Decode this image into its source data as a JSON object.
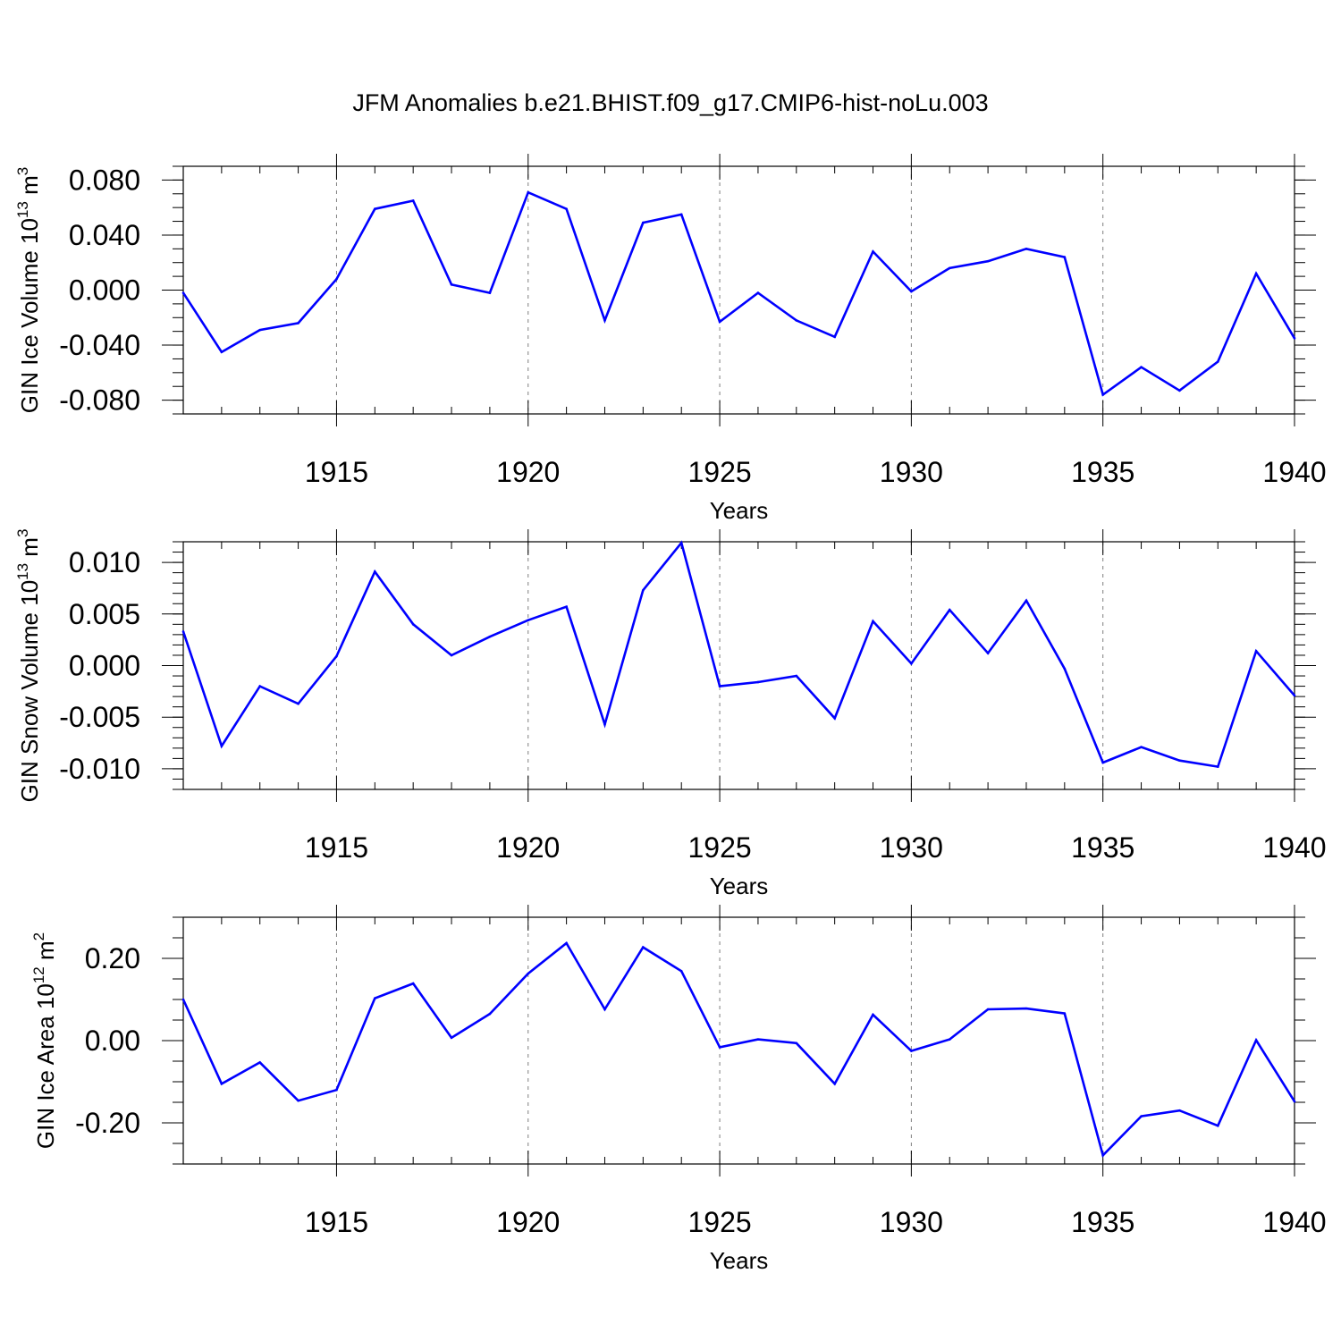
{
  "title": "JFM Anomalies b.e21.BHIST.f09_g17.CMIP6-hist-noLu.003",
  "colors": {
    "line": "#0000ff",
    "axis": "#000000",
    "grid": "#7f7f7f"
  },
  "chart_data": [
    {
      "type": "line",
      "name": "ice-volume",
      "ylabel_main": "GIN Ice Volume 10",
      "ylabel_exp1": "13",
      "ylabel_mid": " m",
      "ylabel_exp2": "3",
      "xlabel": "Years",
      "xlim": [
        1911,
        1940
      ],
      "ylim": [
        -0.09,
        0.09
      ],
      "xticks": [
        1915,
        1920,
        1925,
        1930,
        1935,
        1940
      ],
      "xtick_labels": [
        "1915",
        "1920",
        "1925",
        "1930",
        "1935",
        "1940"
      ],
      "yticks": [
        -0.08,
        -0.04,
        0.0,
        0.04,
        0.08
      ],
      "ytick_labels": [
        "-0.080",
        "-0.040",
        "0.000",
        "0.040",
        "0.080"
      ],
      "yminor_step": 0.01,
      "x": [
        1911,
        1912,
        1913,
        1914,
        1915,
        1916,
        1917,
        1918,
        1919,
        1920,
        1921,
        1922,
        1923,
        1924,
        1925,
        1926,
        1927,
        1928,
        1929,
        1930,
        1931,
        1932,
        1933,
        1934,
        1935,
        1936,
        1937,
        1938,
        1939,
        1940
      ],
      "values": [
        -0.002,
        -0.045,
        -0.029,
        -0.024,
        0.008,
        0.059,
        0.065,
        0.004,
        -0.002,
        0.071,
        0.059,
        -0.022,
        0.049,
        0.055,
        -0.023,
        -0.002,
        -0.022,
        -0.034,
        0.028,
        -0.001,
        0.016,
        0.021,
        0.03,
        0.024,
        -0.076,
        -0.056,
        -0.073,
        -0.052,
        0.012,
        -0.035
      ]
    },
    {
      "type": "line",
      "name": "snow-volume",
      "ylabel_main": "GIN Snow Volume 10",
      "ylabel_exp1": "13",
      "ylabel_mid": " m",
      "ylabel_exp2": "3",
      "xlabel": "Years",
      "xlim": [
        1911,
        1940
      ],
      "ylim": [
        -0.012,
        0.012
      ],
      "xticks": [
        1915,
        1920,
        1925,
        1930,
        1935,
        1940
      ],
      "xtick_labels": [
        "1915",
        "1920",
        "1925",
        "1930",
        "1935",
        "1940"
      ],
      "yticks": [
        -0.01,
        -0.005,
        0.0,
        0.005,
        0.01
      ],
      "ytick_labels": [
        "-0.010",
        "-0.005",
        "0.000",
        "0.005",
        "0.010"
      ],
      "yminor_step": 0.001,
      "x": [
        1911,
        1912,
        1913,
        1914,
        1915,
        1916,
        1917,
        1918,
        1919,
        1920,
        1921,
        1922,
        1923,
        1924,
        1925,
        1926,
        1927,
        1928,
        1929,
        1930,
        1931,
        1932,
        1933,
        1934,
        1935,
        1936,
        1937,
        1938,
        1939,
        1940
      ],
      "values": [
        0.0033,
        -0.0078,
        -0.002,
        -0.0037,
        0.0009,
        0.0091,
        0.004,
        0.001,
        0.0028,
        0.0044,
        0.0057,
        -0.0057,
        0.0073,
        0.0119,
        -0.002,
        -0.0016,
        -0.001,
        -0.0051,
        0.0043,
        0.0002,
        0.0054,
        0.0012,
        0.0063,
        -0.0003,
        -0.0094,
        -0.0079,
        -0.0092,
        -0.0098,
        0.0014,
        -0.0029
      ]
    },
    {
      "type": "line",
      "name": "ice-area",
      "ylabel_main": "GIN Ice Area 10",
      "ylabel_exp1": "12",
      "ylabel_mid": " m",
      "ylabel_exp2": "2",
      "xlabel": "Years",
      "xlim": [
        1911,
        1940
      ],
      "ylim": [
        -0.3,
        0.3
      ],
      "xticks": [
        1915,
        1920,
        1925,
        1930,
        1935,
        1940
      ],
      "xtick_labels": [
        "1915",
        "1920",
        "1925",
        "1930",
        "1935",
        "1940"
      ],
      "yticks": [
        -0.2,
        0.0,
        0.2
      ],
      "ytick_labels": [
        "-0.20",
        "0.00",
        "0.20"
      ],
      "yminor_step": 0.05,
      "x": [
        1911,
        1912,
        1913,
        1914,
        1915,
        1916,
        1917,
        1918,
        1919,
        1920,
        1921,
        1922,
        1923,
        1924,
        1925,
        1926,
        1927,
        1928,
        1929,
        1930,
        1931,
        1932,
        1933,
        1934,
        1935,
        1936,
        1937,
        1938,
        1939,
        1940
      ],
      "values": [
        0.1,
        -0.105,
        -0.053,
        -0.146,
        -0.12,
        0.103,
        0.139,
        0.007,
        0.065,
        0.163,
        0.237,
        0.076,
        0.227,
        0.169,
        -0.016,
        0.003,
        -0.006,
        -0.105,
        0.063,
        -0.025,
        0.003,
        0.076,
        0.078,
        0.066,
        -0.279,
        -0.184,
        -0.17,
        -0.207,
        0.001,
        -0.148
      ]
    }
  ]
}
